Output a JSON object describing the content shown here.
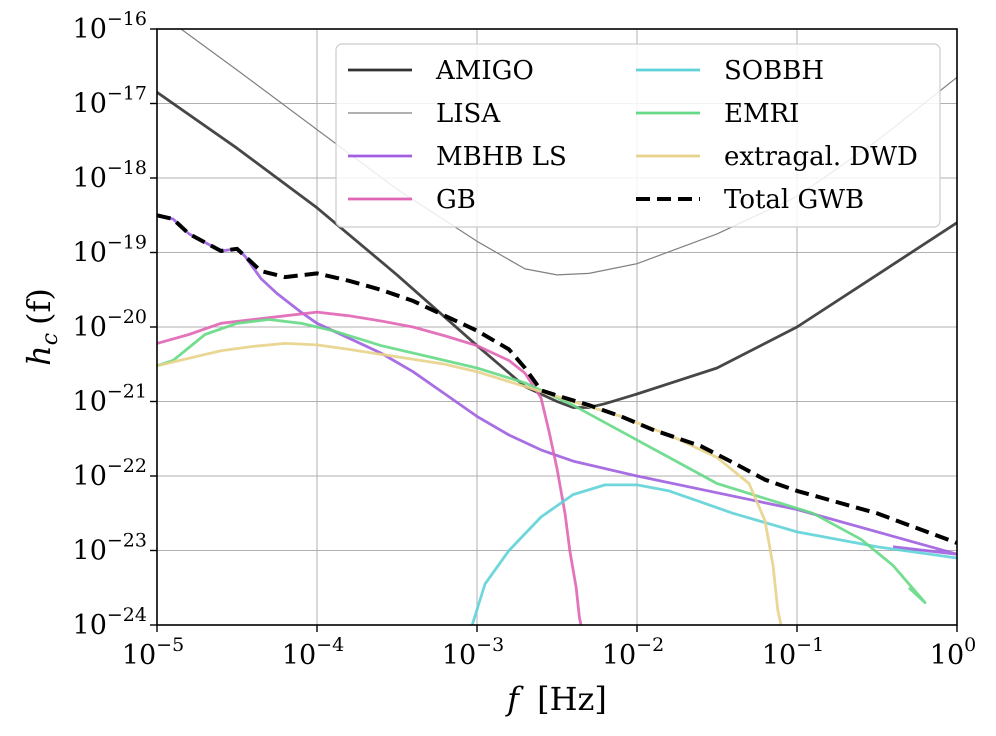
{
  "chart_data": {
    "type": "line",
    "xscale": "log",
    "yscale": "log",
    "xlim_log10": [
      -5,
      0
    ],
    "ylim_log10": [
      -24,
      -16
    ],
    "xlabel": "f",
    "xlabel_unit": "[Hz]",
    "ylabel": "h",
    "ylabel_sub": "c",
    "ylabel_arg": "(f)",
    "xticks": [
      {
        "base": "10",
        "exp": "−5",
        "log": -5
      },
      {
        "base": "10",
        "exp": "−4",
        "log": -4
      },
      {
        "base": "10",
        "exp": "−3",
        "log": -3
      },
      {
        "base": "10",
        "exp": "−2",
        "log": -2
      },
      {
        "base": "10",
        "exp": "−1",
        "log": -1
      },
      {
        "base": "10",
        "exp": "0",
        "log": 0
      }
    ],
    "yticks": [
      {
        "base": "10",
        "exp": "−16",
        "log": -16
      },
      {
        "base": "10",
        "exp": "−17",
        "log": -17
      },
      {
        "base": "10",
        "exp": "−18",
        "log": -18
      },
      {
        "base": "10",
        "exp": "−19",
        "log": -19
      },
      {
        "base": "10",
        "exp": "−20",
        "log": -20
      },
      {
        "base": "10",
        "exp": "−21",
        "log": -21
      },
      {
        "base": "10",
        "exp": "−22",
        "log": -22
      },
      {
        "base": "10",
        "exp": "−23",
        "log": -23
      },
      {
        "base": "10",
        "exp": "−24",
        "log": -24
      }
    ],
    "grid": true,
    "legend_position": "top-right",
    "legend_columns": 2,
    "series": [
      {
        "name": "AMIGO",
        "color": "#333333",
        "style": "solid",
        "width": "thick",
        "points": [
          [
            -5,
            -16.85
          ],
          [
            -4.5,
            -17.6
          ],
          [
            -4,
            -18.4
          ],
          [
            -3.5,
            -19.3
          ],
          [
            -3,
            -20.25
          ],
          [
            -2.7,
            -20.8
          ],
          [
            -2.5,
            -21.0
          ],
          [
            -2.4,
            -21.08
          ],
          [
            -2.3,
            -21.08
          ],
          [
            -2.2,
            -21.03
          ],
          [
            -2,
            -20.9
          ],
          [
            -1.5,
            -20.55
          ],
          [
            -1,
            -20.0
          ],
          [
            -0.5,
            -19.3
          ],
          [
            0,
            -18.6
          ]
        ]
      },
      {
        "name": "LISA",
        "color": "#808080",
        "style": "solid",
        "width": "thin",
        "points": [
          [
            -4.85,
            -16.0
          ],
          [
            -4.5,
            -16.55
          ],
          [
            -4,
            -17.35
          ],
          [
            -3.5,
            -18.15
          ],
          [
            -3,
            -18.85
          ],
          [
            -2.7,
            -19.22
          ],
          [
            -2.5,
            -19.3
          ],
          [
            -2.3,
            -19.28
          ],
          [
            -2,
            -19.15
          ],
          [
            -1.5,
            -18.75
          ],
          [
            -1,
            -18.25
          ],
          [
            -0.5,
            -17.5
          ],
          [
            0,
            -16.65
          ]
        ]
      },
      {
        "name": "MBHB LS",
        "color": "#9f5fe0",
        "style": "solid",
        "width": "thick",
        "points": [
          [
            -5,
            -18.5
          ],
          [
            -4.9,
            -18.55
          ],
          [
            -4.8,
            -18.75
          ],
          [
            -4.6,
            -18.98
          ],
          [
            -4.5,
            -18.95
          ],
          [
            -4.45,
            -19.05
          ],
          [
            -4.35,
            -19.35
          ],
          [
            -4.25,
            -19.55
          ],
          [
            -4.1,
            -19.8
          ],
          [
            -4,
            -19.95
          ],
          [
            -3.8,
            -20.15
          ],
          [
            -3.6,
            -20.35
          ],
          [
            -3.4,
            -20.6
          ],
          [
            -3.2,
            -20.9
          ],
          [
            -3,
            -21.2
          ],
          [
            -2.8,
            -21.45
          ],
          [
            -2.6,
            -21.65
          ],
          [
            -2.4,
            -21.8
          ],
          [
            -2,
            -22.0
          ],
          [
            -1,
            -22.45
          ],
          [
            0,
            -23.05
          ],
          [
            -0.4,
            -22.95
          ]
        ]
      },
      {
        "name": "GB",
        "color": "#e065b5",
        "style": "solid",
        "width": "thick",
        "points": [
          [
            -5,
            -20.22
          ],
          [
            -4.8,
            -20.1
          ],
          [
            -4.6,
            -19.95
          ],
          [
            -4.4,
            -19.9
          ],
          [
            -4.2,
            -19.85
          ],
          [
            -4,
            -19.8
          ],
          [
            -3.8,
            -19.85
          ],
          [
            -3.6,
            -19.92
          ],
          [
            -3.4,
            -20.0
          ],
          [
            -3.2,
            -20.12
          ],
          [
            -3,
            -20.25
          ],
          [
            -2.8,
            -20.45
          ],
          [
            -2.7,
            -20.62
          ],
          [
            -2.6,
            -20.95
          ],
          [
            -2.55,
            -21.4
          ],
          [
            -2.5,
            -21.9
          ],
          [
            -2.45,
            -22.5
          ],
          [
            -2.42,
            -23.0
          ],
          [
            -2.38,
            -23.5
          ],
          [
            -2.36,
            -23.9
          ],
          [
            -2.35,
            -24.0
          ]
        ]
      },
      {
        "name": "SOBBH",
        "color": "#5fd3d8",
        "style": "solid",
        "width": "thick",
        "points": [
          [
            -3.03,
            -24.0
          ],
          [
            -2.95,
            -23.45
          ],
          [
            -2.8,
            -23.0
          ],
          [
            -2.6,
            -22.55
          ],
          [
            -2.4,
            -22.25
          ],
          [
            -2.2,
            -22.12
          ],
          [
            -2,
            -22.12
          ],
          [
            -1.8,
            -22.2
          ],
          [
            -1.6,
            -22.35
          ],
          [
            -1.4,
            -22.5
          ],
          [
            -1,
            -22.75
          ],
          [
            -0.5,
            -22.95
          ],
          [
            0,
            -23.1
          ]
        ]
      },
      {
        "name": "EMRI",
        "color": "#65d985",
        "style": "solid",
        "width": "thick",
        "points": [
          [
            -5,
            -20.52
          ],
          [
            -4.9,
            -20.45
          ],
          [
            -4.7,
            -20.1
          ],
          [
            -4.5,
            -19.95
          ],
          [
            -4.3,
            -19.9
          ],
          [
            -4.1,
            -19.95
          ],
          [
            -3.9,
            -20.05
          ],
          [
            -3.6,
            -20.25
          ],
          [
            -3.3,
            -20.4
          ],
          [
            -3,
            -20.55
          ],
          [
            -2.7,
            -20.75
          ],
          [
            -2.4,
            -21.05
          ],
          [
            -2.1,
            -21.4
          ],
          [
            -1.8,
            -21.75
          ],
          [
            -1.5,
            -22.1
          ],
          [
            -1.2,
            -22.3
          ],
          [
            -0.9,
            -22.5
          ],
          [
            -0.6,
            -22.85
          ],
          [
            -0.4,
            -23.2
          ],
          [
            -0.2,
            -23.7
          ],
          [
            -0.3,
            -23.5
          ]
        ]
      },
      {
        "name": "extragal. DWD",
        "color": "#e8d28a",
        "style": "solid",
        "width": "thick",
        "points": [
          [
            -5,
            -20.52
          ],
          [
            -4.8,
            -20.42
          ],
          [
            -4.6,
            -20.32
          ],
          [
            -4.4,
            -20.26
          ],
          [
            -4.2,
            -20.22
          ],
          [
            -4,
            -20.24
          ],
          [
            -3.8,
            -20.3
          ],
          [
            -3.5,
            -20.4
          ],
          [
            -3.2,
            -20.5
          ],
          [
            -3,
            -20.6
          ],
          [
            -2.7,
            -20.8
          ],
          [
            -2.4,
            -21.0
          ],
          [
            -2.1,
            -21.2
          ],
          [
            -1.8,
            -21.45
          ],
          [
            -1.5,
            -21.75
          ],
          [
            -1.3,
            -22.1
          ],
          [
            -1.2,
            -22.6
          ],
          [
            -1.15,
            -23.2
          ],
          [
            -1.12,
            -23.8
          ],
          [
            -1.1,
            -24.0
          ]
        ]
      },
      {
        "name": "Total GWB",
        "color": "#000000",
        "style": "dashed",
        "width": "thick",
        "points": [
          [
            -5,
            -18.5
          ],
          [
            -4.9,
            -18.55
          ],
          [
            -4.8,
            -18.75
          ],
          [
            -4.6,
            -18.98
          ],
          [
            -4.5,
            -18.95
          ],
          [
            -4.45,
            -19.05
          ],
          [
            -4.35,
            -19.25
          ],
          [
            -4.2,
            -19.33
          ],
          [
            -4,
            -19.28
          ],
          [
            -3.8,
            -19.38
          ],
          [
            -3.6,
            -19.5
          ],
          [
            -3.4,
            -19.65
          ],
          [
            -3.2,
            -19.85
          ],
          [
            -3,
            -20.05
          ],
          [
            -2.8,
            -20.3
          ],
          [
            -2.7,
            -20.55
          ],
          [
            -2.6,
            -20.85
          ],
          [
            -2.5,
            -20.92
          ],
          [
            -2.3,
            -21.05
          ],
          [
            -2.1,
            -21.2
          ],
          [
            -1.9,
            -21.38
          ],
          [
            -1.6,
            -21.6
          ],
          [
            -1.4,
            -21.82
          ],
          [
            -1.2,
            -22.05
          ],
          [
            -1,
            -22.2
          ],
          [
            -0.5,
            -22.5
          ],
          [
            0,
            -22.9
          ]
        ]
      }
    ]
  }
}
